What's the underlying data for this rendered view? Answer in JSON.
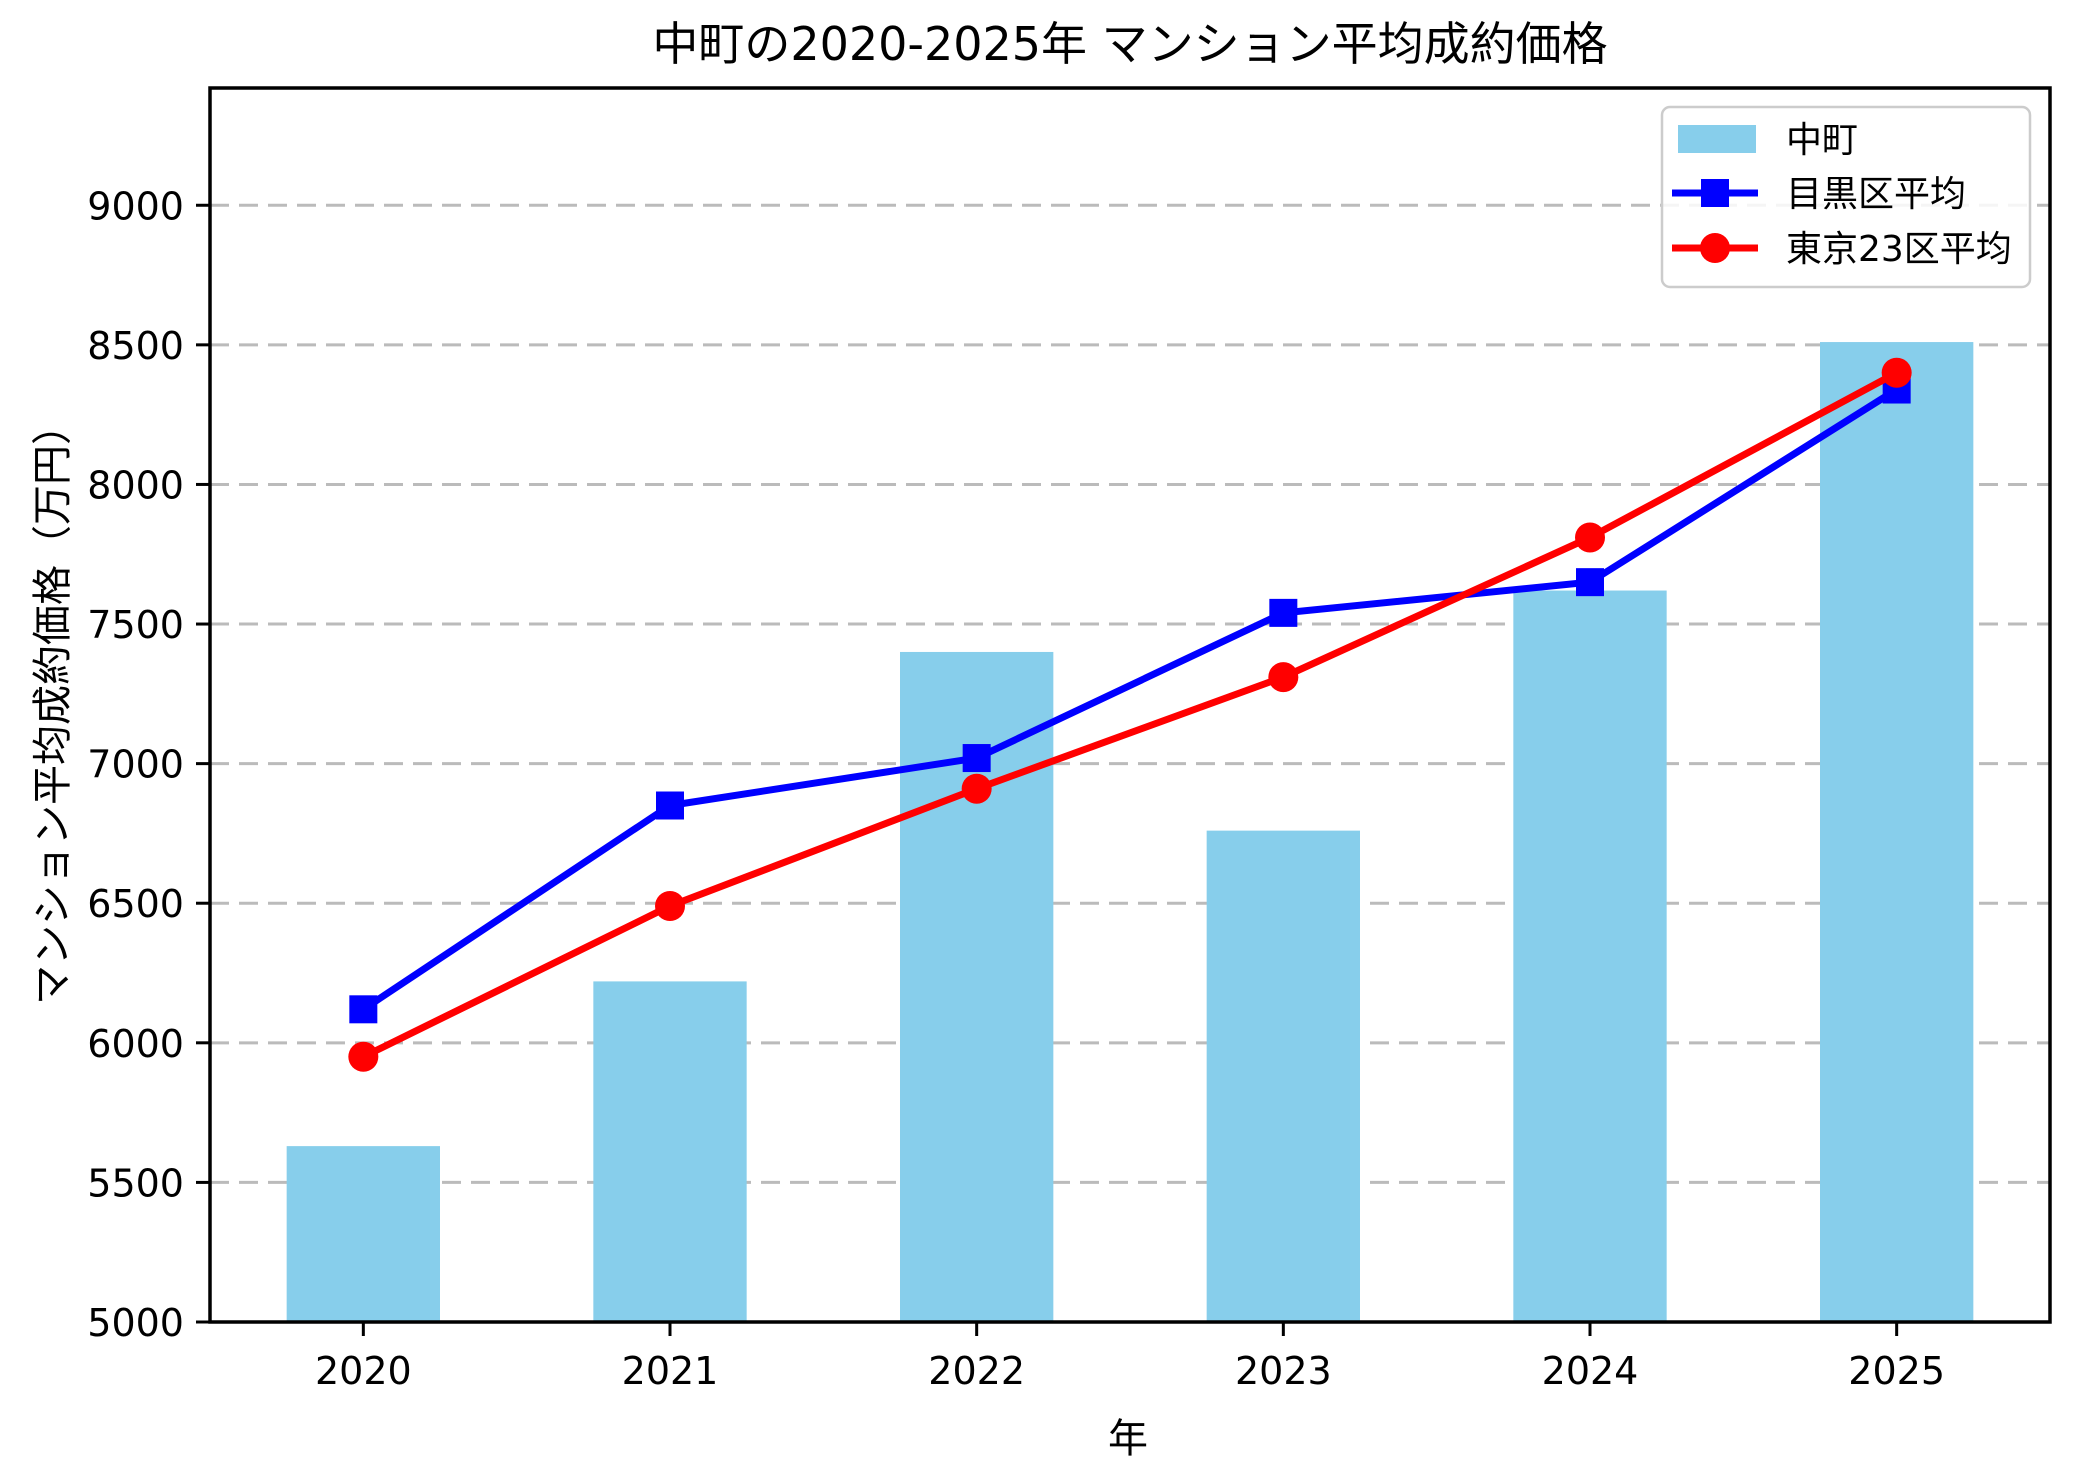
{
  "chart_data": {
    "type": "bar",
    "title": "中町の2020-2025年 マンション平均成約価格",
    "xlabel": "年",
    "ylabel": "マンション平均成約価格（万円）",
    "categories": [
      "2020",
      "2021",
      "2022",
      "2023",
      "2024",
      "2025"
    ],
    "bar_series": {
      "name": "中町",
      "color": "#87CEEB",
      "width_frac": 0.5,
      "values": [
        5630,
        6220,
        7400,
        6760,
        7620,
        8510
      ]
    },
    "line_series": [
      {
        "name": "目黒区平均",
        "color": "#0000FF",
        "marker": "square",
        "values": [
          6120,
          6850,
          7020,
          7540,
          7650,
          8340
        ]
      },
      {
        "name": "東京23区平均",
        "color": "#FF0000",
        "marker": "circle",
        "values": [
          5950,
          6490,
          6910,
          7310,
          7810,
          8400
        ]
      }
    ],
    "ylim": [
      5000,
      9420
    ],
    "yticks": [
      5000,
      5500,
      6000,
      6500,
      7000,
      7500,
      8000,
      8500,
      9000
    ],
    "grid": true,
    "grid_color": "#bbbbbb",
    "legend_position": "upper right"
  }
}
